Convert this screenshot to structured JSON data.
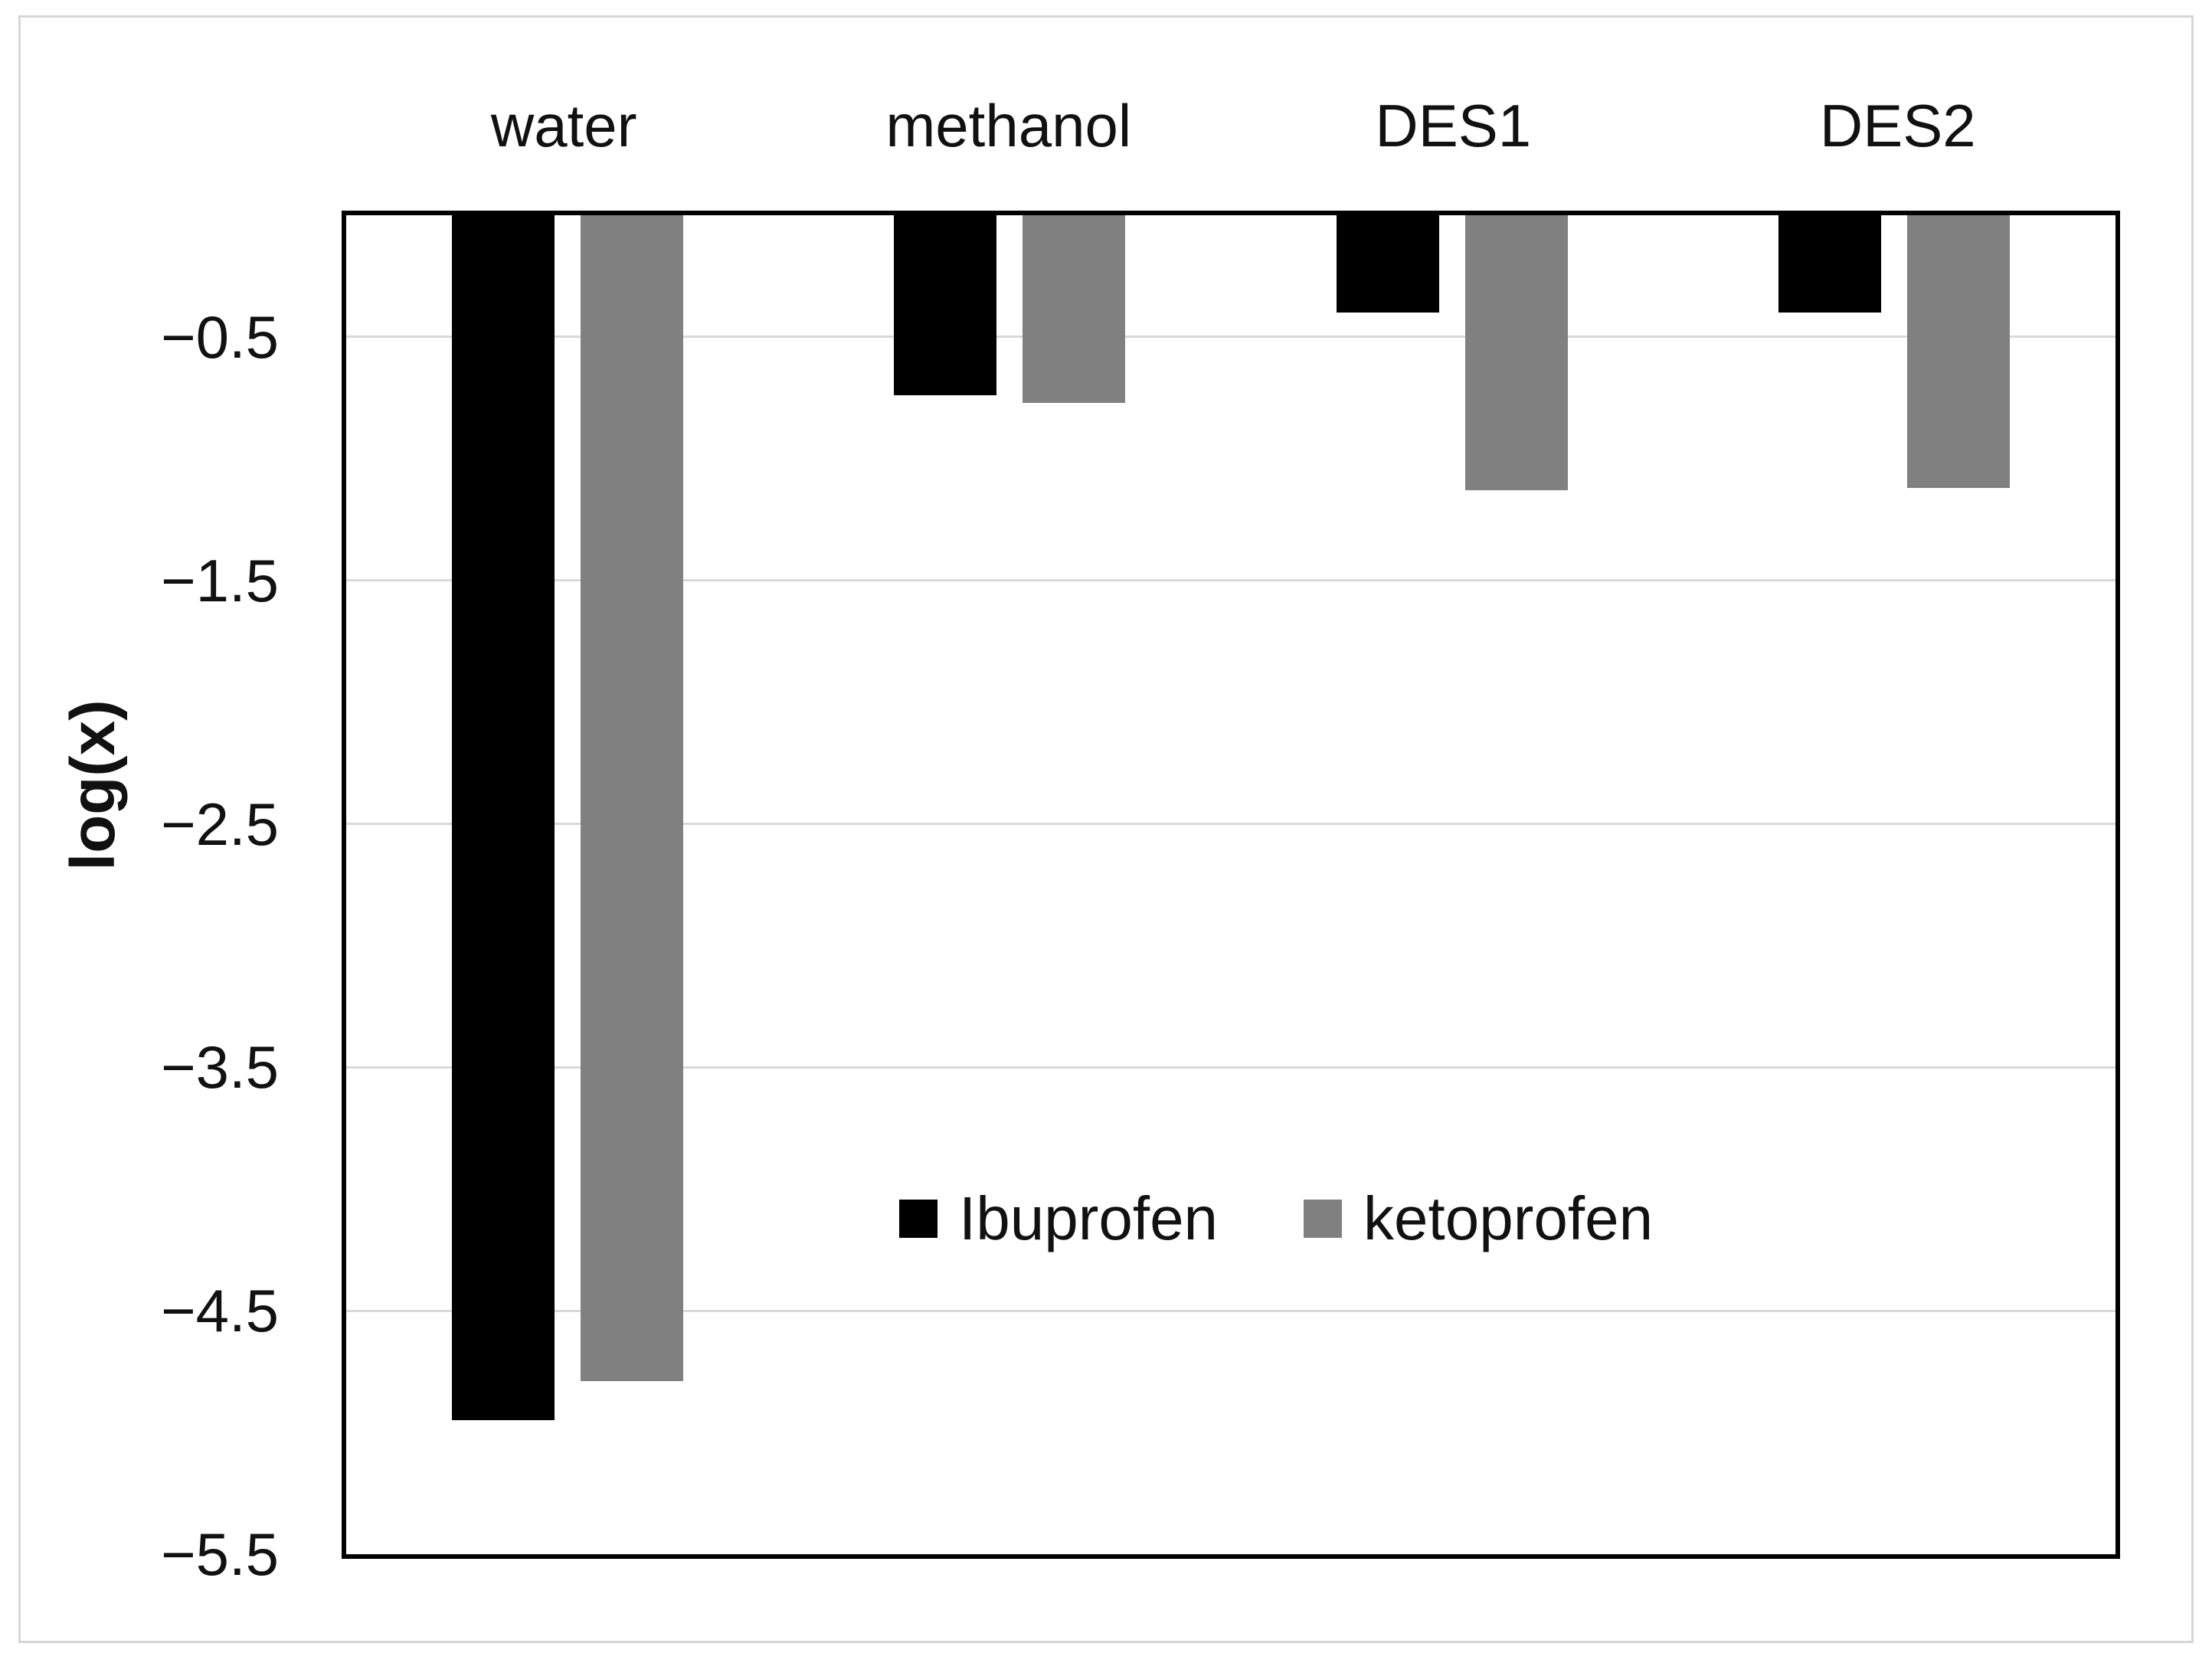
{
  "chart_data": {
    "type": "bar",
    "orientation": "vertical-hanging",
    "title": "",
    "xlabel": "",
    "ylabel": "log(x)",
    "categories": [
      "water",
      "methanol",
      "DES1",
      "DES2"
    ],
    "series": [
      {
        "name": "Ibuprofen",
        "color": "#000000",
        "values": [
          -4.95,
          -0.74,
          -0.4,
          -0.4
        ]
      },
      {
        "name": "ketoprofen",
        "color": "#808080",
        "values": [
          -4.79,
          -0.77,
          -1.13,
          -1.12
        ]
      }
    ],
    "ylim": [
      -5.5,
      0
    ],
    "yticks": [
      -0.5,
      -1.5,
      -2.5,
      -3.5,
      -4.5,
      -5.5
    ],
    "ytick_labels": [
      "−0.5",
      "−1.5",
      "−2.5",
      "−3.5",
      "−4.5",
      "−5.5"
    ],
    "grid": "horizontal",
    "gridline_color": "#d9d9d9",
    "plot_border_color": "#000000",
    "outer_frame_color": "#d6d6d6",
    "legend_position": "inside-lower-middle",
    "category_label_position": "above-plot"
  }
}
